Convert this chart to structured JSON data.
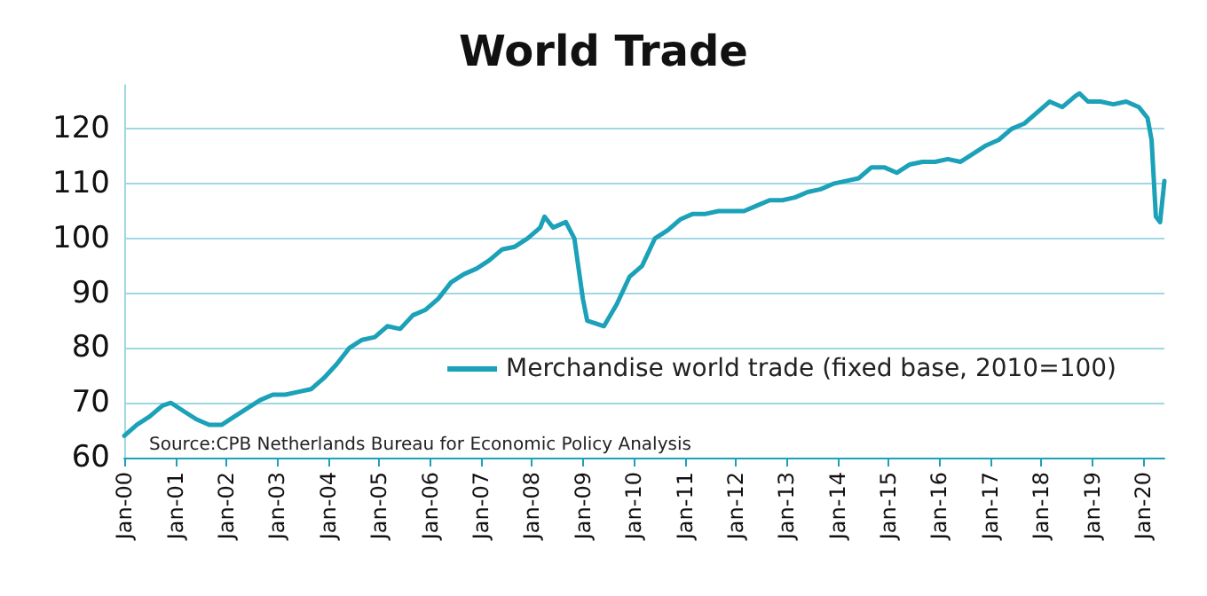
{
  "chart_data": {
    "type": "line",
    "title": "World Trade",
    "x": [
      "2000-01",
      "2000-04",
      "2000-07",
      "2000-10",
      "2000-12",
      "2001-03",
      "2001-06",
      "2001-09",
      "2001-12",
      "2002-03",
      "2002-06",
      "2002-09",
      "2002-12",
      "2003-03",
      "2003-06",
      "2003-09",
      "2003-12",
      "2004-03",
      "2004-06",
      "2004-09",
      "2004-12",
      "2005-03",
      "2005-06",
      "2005-09",
      "2005-12",
      "2006-03",
      "2006-06",
      "2006-09",
      "2006-12",
      "2007-03",
      "2007-06",
      "2007-09",
      "2007-12",
      "2008-03",
      "2008-04",
      "2008-06",
      "2008-09",
      "2008-11",
      "2009-01",
      "2009-02",
      "2009-04",
      "2009-06",
      "2009-09",
      "2009-12",
      "2010-03",
      "2010-06",
      "2010-09",
      "2010-12",
      "2011-03",
      "2011-06",
      "2011-09",
      "2011-12",
      "2012-03",
      "2012-06",
      "2012-09",
      "2012-12",
      "2013-03",
      "2013-06",
      "2013-09",
      "2013-12",
      "2014-03",
      "2014-06",
      "2014-09",
      "2014-12",
      "2015-03",
      "2015-06",
      "2015-09",
      "2015-12",
      "2016-03",
      "2016-06",
      "2016-09",
      "2016-12",
      "2017-03",
      "2017-06",
      "2017-09",
      "2017-12",
      "2018-03",
      "2018-06",
      "2018-09",
      "2018-10",
      "2018-12",
      "2019-03",
      "2019-06",
      "2019-09",
      "2019-12",
      "2020-02",
      "2020-03",
      "2020-04",
      "2020-05",
      "2020-06"
    ],
    "series": [
      {
        "name": "Merchandise world trade (fixed base, 2010=100)",
        "color": "#1ba1b8",
        "values": [
          64,
          66,
          67.5,
          69.5,
          70,
          68.5,
          67,
          66,
          66,
          67.5,
          69,
          70.5,
          71.5,
          71.5,
          72,
          72.5,
          74.5,
          77,
          80,
          81.5,
          82,
          84,
          83.5,
          86,
          87,
          89,
          92,
          93.5,
          94.5,
          96,
          98,
          98.5,
          100,
          102,
          104,
          102,
          103,
          100,
          89,
          85,
          84.5,
          84,
          88,
          93,
          95,
          100,
          101.5,
          103.5,
          104.5,
          104.5,
          105,
          105,
          105,
          106,
          107,
          107,
          107.5,
          108.5,
          109,
          110,
          110.5,
          111,
          113,
          113,
          112,
          113.5,
          114,
          114,
          114.5,
          114,
          115.5,
          117,
          118,
          120,
          121,
          123,
          125,
          124,
          126,
          126.5,
          125,
          125,
          124.5,
          125,
          124,
          122,
          118,
          104,
          103,
          110.5
        ]
      }
    ],
    "xlim": [
      "2000-01",
      "2020-06"
    ],
    "xticks": [
      {
        "value": "2000-01",
        "label": "Jan-00"
      },
      {
        "value": "2001-01",
        "label": "Jan-01"
      },
      {
        "value": "2002-01",
        "label": "Jan-02"
      },
      {
        "value": "2003-01",
        "label": "Jan-03"
      },
      {
        "value": "2004-01",
        "label": "Jan-04"
      },
      {
        "value": "2005-01",
        "label": "Jan-05"
      },
      {
        "value": "2006-01",
        "label": "Jan-06"
      },
      {
        "value": "2007-01",
        "label": "Jan-07"
      },
      {
        "value": "2008-01",
        "label": "Jan-08"
      },
      {
        "value": "2009-01",
        "label": "Jan-09"
      },
      {
        "value": "2010-01",
        "label": "Jan-10"
      },
      {
        "value": "2011-01",
        "label": "Jan-11"
      },
      {
        "value": "2012-01",
        "label": "Jan-12"
      },
      {
        "value": "2013-01",
        "label": "Jan-13"
      },
      {
        "value": "2014-01",
        "label": "Jan-14"
      },
      {
        "value": "2015-01",
        "label": "Jan-15"
      },
      {
        "value": "2016-01",
        "label": "Jan-16"
      },
      {
        "value": "2017-01",
        "label": "Jan-17"
      },
      {
        "value": "2018-01",
        "label": "Jan-18"
      },
      {
        "value": "2019-01",
        "label": "Jan-19"
      },
      {
        "value": "2020-01",
        "label": "Jan-20"
      }
    ],
    "ylim": [
      60,
      128
    ],
    "yticks": [
      60,
      70,
      80,
      90,
      100,
      110,
      120
    ],
    "grid": "y",
    "legend": "bottom right",
    "marker": "none",
    "line_style": "solid",
    "annotations": [
      "Source:CPB Netherlands Bureau for Economic Policy Analysis"
    ]
  }
}
